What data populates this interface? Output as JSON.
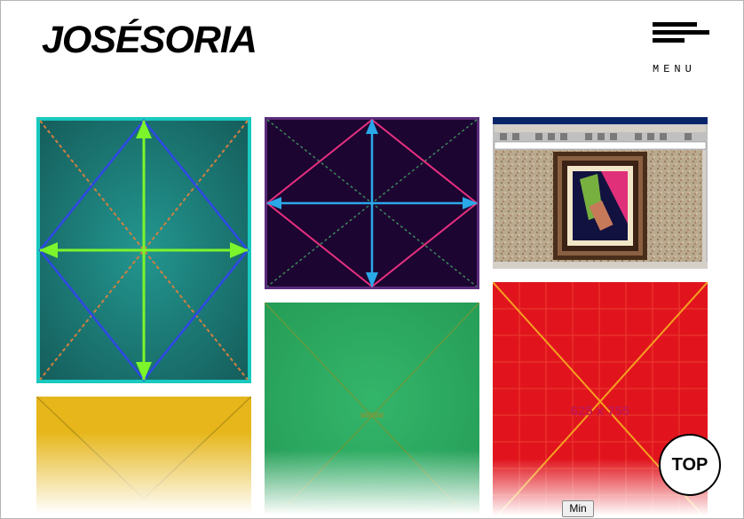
{
  "header": {
    "logo_text": "JOSÉSORIA",
    "menu_label": "MENU"
  },
  "gallery": {
    "tiles": [
      {
        "id": "teal-arrows",
        "color": "#1e8a85"
      },
      {
        "id": "purple-arrows",
        "color": "#1d0532"
      },
      {
        "id": "browser-screenshot",
        "color": "#b9a98e"
      },
      {
        "id": "yellow",
        "color": "#e6b61a"
      },
      {
        "id": "green",
        "color": "#2daa61"
      },
      {
        "id": "red-placeholder",
        "color": "#e1141d",
        "label": "625 x 755"
      }
    ]
  },
  "controls": {
    "top_label": "TOP",
    "min_label": "Min"
  }
}
